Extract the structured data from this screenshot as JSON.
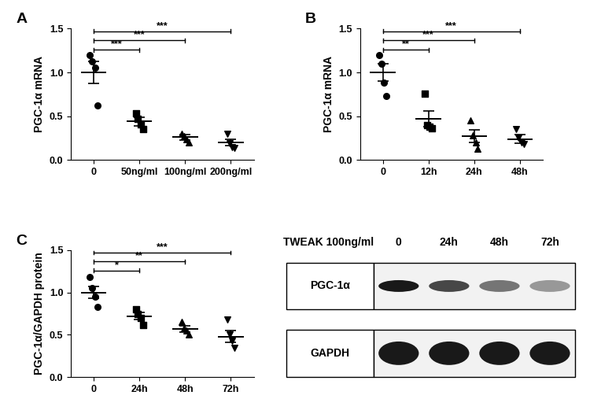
{
  "chart_data": [
    {
      "type": "scatter",
      "title": "A",
      "ylabel": "PGC-1α mRNA",
      "color": "#000000",
      "categories": [
        "0",
        "50ng/ml",
        "100ng/ml",
        "200ng/ml"
      ],
      "points": [
        [
          1.2,
          1.13,
          1.05,
          0.62
        ],
        [
          0.53,
          0.47,
          0.41,
          0.35
        ],
        [
          0.3,
          0.27,
          0.24,
          0.2
        ],
        [
          0.3,
          0.19,
          0.15,
          0.14
        ]
      ],
      "values": [
        1.0,
        0.44,
        0.26,
        0.2
      ],
      "errors": [
        0.13,
        0.05,
        0.03,
        0.04
      ],
      "ylim": [
        0,
        1.5
      ],
      "yticks": [
        {
          "value": 0,
          "label": "0.0"
        },
        {
          "value": 0.5,
          "label": "0.5"
        },
        {
          "value": 1.0,
          "label": "1.0"
        },
        {
          "value": 1.5,
          "label": "1.5"
        }
      ],
      "significance": [
        {
          "from": 0,
          "to": 1,
          "label": "***"
        },
        {
          "from": 0,
          "to": 2,
          "label": "***"
        },
        {
          "from": 0,
          "to": 3,
          "label": "***"
        }
      ]
    },
    {
      "type": "scatter",
      "title": "B",
      "ylabel": "PGC-1α mRNA",
      "color": "#000000",
      "categories": [
        "0",
        "12h",
        "24h",
        "48h"
      ],
      "points": [
        [
          1.2,
          1.1,
          0.88,
          0.73
        ],
        [
          0.76,
          0.4,
          0.38,
          0.36
        ],
        [
          0.45,
          0.28,
          0.2,
          0.13
        ],
        [
          0.35,
          0.25,
          0.2,
          0.18
        ]
      ],
      "values": [
        1.0,
        0.47,
        0.27,
        0.24
      ],
      "errors": [
        0.1,
        0.09,
        0.07,
        0.05
      ],
      "ylim": [
        0,
        1.5
      ],
      "yticks": [
        {
          "value": 0,
          "label": "0.0"
        },
        {
          "value": 0.5,
          "label": "0.5"
        },
        {
          "value": 1.0,
          "label": "1.0"
        },
        {
          "value": 1.5,
          "label": "1.5"
        }
      ],
      "significance": [
        {
          "from": 0,
          "to": 1,
          "label": "**"
        },
        {
          "from": 0,
          "to": 2,
          "label": "***"
        },
        {
          "from": 0,
          "to": 3,
          "label": "***"
        }
      ]
    },
    {
      "type": "scatter",
      "title": "C",
      "ylabel": "PGC-1α/GAPDH protein",
      "color": "#000000",
      "categories": [
        "0",
        "24h",
        "48h",
        "72h"
      ],
      "points": [
        [
          1.18,
          1.05,
          0.95,
          0.83
        ],
        [
          0.8,
          0.75,
          0.7,
          0.62
        ],
        [
          0.65,
          0.58,
          0.55,
          0.5
        ],
        [
          0.68,
          0.5,
          0.43,
          0.35
        ]
      ],
      "values": [
        1.0,
        0.72,
        0.57,
        0.48
      ],
      "errors": [
        0.07,
        0.04,
        0.04,
        0.07
      ],
      "ylim": [
        0,
        1.5
      ],
      "yticks": [
        {
          "value": 0,
          "label": "0.0"
        },
        {
          "value": 0.5,
          "label": "0.5"
        },
        {
          "value": 1.0,
          "label": "1.0"
        },
        {
          "value": 1.5,
          "label": "1.5"
        }
      ],
      "significance": [
        {
          "from": 0,
          "to": 1,
          "label": "*"
        },
        {
          "from": 0,
          "to": 2,
          "label": "**"
        },
        {
          "from": 0,
          "to": 3,
          "label": "***"
        }
      ]
    }
  ],
  "blot": {
    "treatment": "TWEAK 100ng/ml",
    "lanes": [
      "0",
      "24h",
      "48h",
      "72h"
    ],
    "bands": [
      {
        "name": "PGC-1α",
        "intensity": [
          1.0,
          0.8,
          0.6,
          0.45
        ]
      },
      {
        "name": "GAPDH",
        "intensity": [
          1.0,
          1.0,
          1.0,
          1.0
        ]
      }
    ]
  }
}
